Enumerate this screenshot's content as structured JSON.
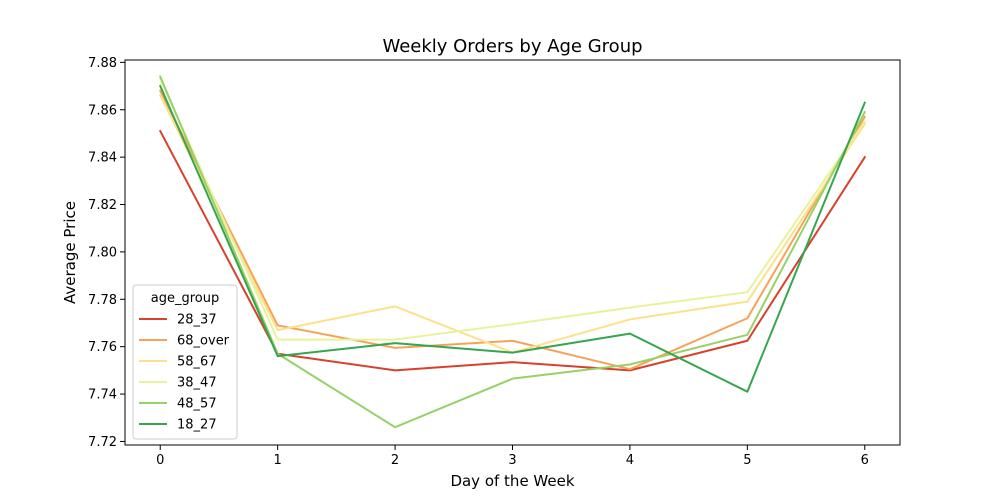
{
  "chart_data": {
    "type": "line",
    "title": "Weekly Orders by Age Group",
    "xlabel": "Day of the Week",
    "ylabel": "Average Price",
    "x": [
      0,
      1,
      2,
      3,
      4,
      5,
      6
    ],
    "xlim": [
      -0.3,
      6.3
    ],
    "ylim": [
      7.7185,
      7.881
    ],
    "yticks": [
      7.72,
      7.74,
      7.76,
      7.78,
      7.8,
      7.82,
      7.84,
      7.86,
      7.88
    ],
    "ytick_labels": [
      "7.72",
      "7.74",
      "7.76",
      "7.78",
      "7.80",
      "7.82",
      "7.84",
      "7.86",
      "7.88"
    ],
    "xticks": [
      0,
      1,
      2,
      3,
      4,
      5,
      6
    ],
    "xtick_labels": [
      "0",
      "1",
      "2",
      "3",
      "4",
      "5",
      "6"
    ],
    "grid": false,
    "legend": {
      "title": "age_group",
      "position": "lower-left"
    },
    "series": [
      {
        "name": "28_37",
        "color": "#d7412e",
        "values": [
          7.851,
          7.757,
          7.75,
          7.7535,
          7.75,
          7.7625,
          7.84
        ]
      },
      {
        "name": "68_over",
        "color": "#f7a25a",
        "values": [
          7.868,
          7.769,
          7.7595,
          7.7625,
          7.7505,
          7.772,
          7.857
        ]
      },
      {
        "name": "58_67",
        "color": "#fde08a",
        "values": [
          7.866,
          7.767,
          7.777,
          7.7575,
          7.7715,
          7.779,
          7.854
        ]
      },
      {
        "name": "38_47",
        "color": "#e7f29a",
        "values": [
          7.873,
          7.763,
          7.763,
          7.7695,
          7.7765,
          7.783,
          7.855
        ]
      },
      {
        "name": "48_57",
        "color": "#96d267",
        "values": [
          7.874,
          7.757,
          7.726,
          7.7465,
          7.7525,
          7.765,
          7.859
        ]
      },
      {
        "name": "18_27",
        "color": "#36a64e",
        "values": [
          7.87,
          7.756,
          7.7615,
          7.7575,
          7.7655,
          7.741,
          7.863
        ]
      }
    ]
  }
}
